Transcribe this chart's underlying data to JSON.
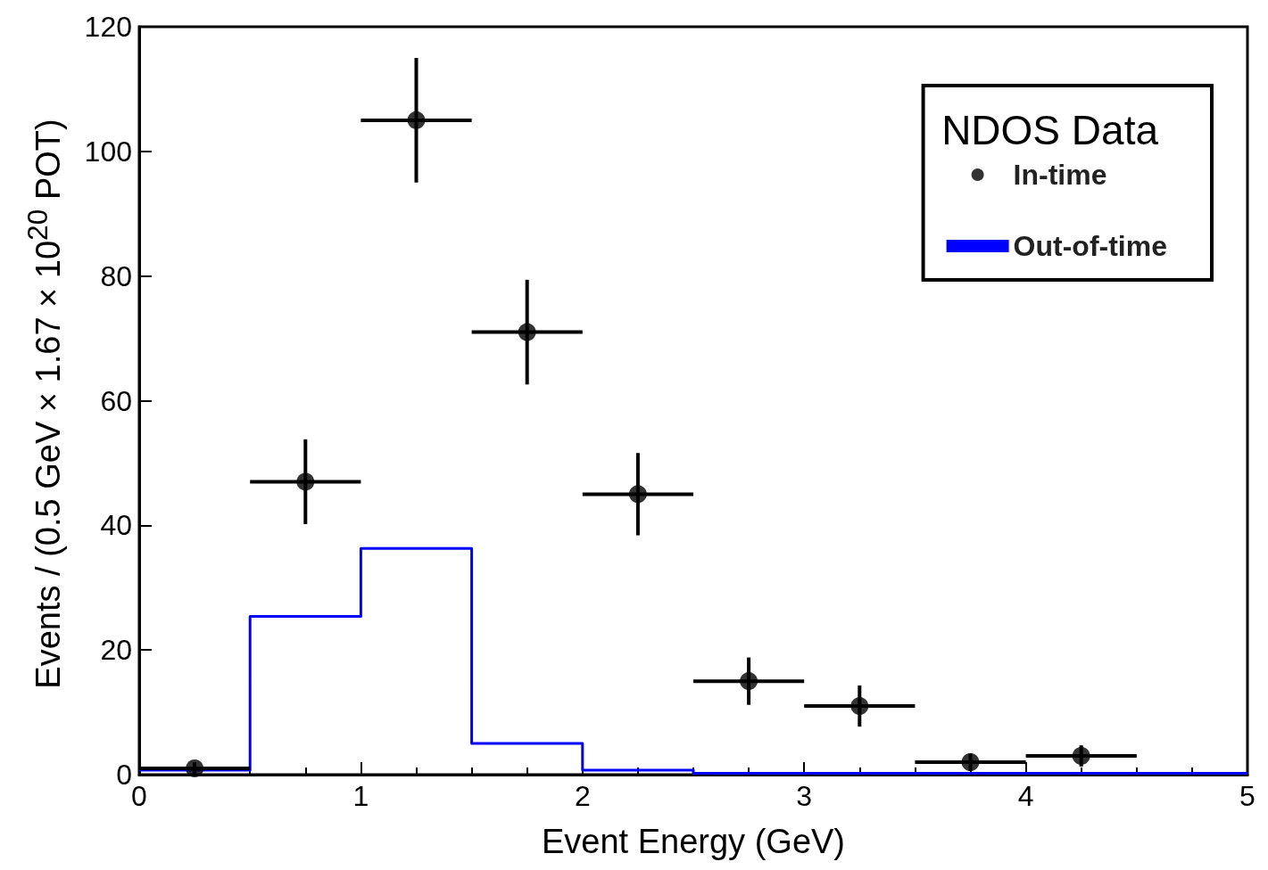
{
  "chart_data": {
    "type": "scatter",
    "xlabel": "Event Energy (GeV)",
    "ylabel": "Events / (0.5 GeV × 1.67 × 10$^{20}$ POT)",
    "legend_title": "NDOS Data",
    "legend": "top right",
    "grid": false,
    "xlim": [
      0,
      5
    ],
    "xticks": [
      0,
      1,
      2,
      3,
      4,
      5
    ],
    "ylim": [
      0,
      120
    ],
    "yticks": [
      0,
      20,
      40,
      60,
      80,
      100,
      120
    ],
    "series": [
      {
        "name": "In-time",
        "marker": "circle",
        "color": "#000000",
        "x": [
          0.25,
          0.75,
          1.25,
          1.75,
          2.25,
          2.75,
          3.25,
          3.75,
          4.25
        ],
        "values": [
          1,
          47,
          105,
          71,
          45,
          15,
          11,
          2,
          3
        ],
        "errors": [
          1,
          6.8,
          10,
          8.4,
          6.6,
          3.8,
          3.3,
          1.4,
          1.7
        ],
        "xerrors": [
          0.25,
          0.25,
          0.25,
          0.25,
          0.25,
          0.25,
          0.25,
          0.25,
          0.25
        ]
      },
      {
        "name": "Out-of-time",
        "type": "step",
        "color": "#0000ff",
        "x": [
          0,
          0.5,
          1,
          1.5,
          2,
          2.5,
          3,
          3.5,
          4,
          4.5,
          5
        ],
        "values": [
          0.7,
          25.4,
          36.3,
          5,
          0.7,
          0.2,
          0.2,
          0.2,
          0.2,
          0.2,
          0.2
        ]
      }
    ]
  }
}
